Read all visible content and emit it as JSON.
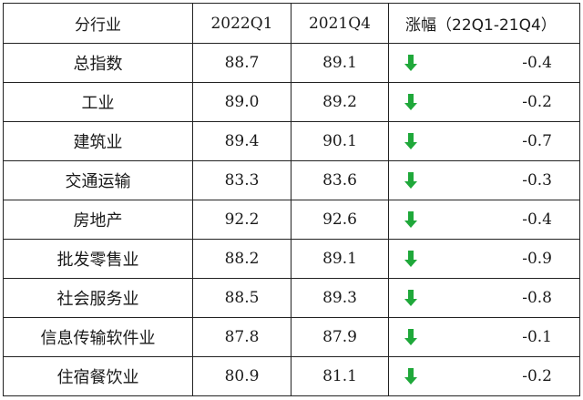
{
  "header": {
    "industry": "分行业",
    "q1": "2022Q1",
    "q4": "2021Q4",
    "change": "涨幅（22Q1-21Q4）"
  },
  "arrow_color": "#1fa83a",
  "arrow_icon": "down-arrow-icon",
  "rows": [
    {
      "industry": "总指数",
      "q1": "88.7",
      "q4": "89.1",
      "change": "-0.4"
    },
    {
      "industry": "工业",
      "q1": "89.0",
      "q4": "89.2",
      "change": "-0.2"
    },
    {
      "industry": "建筑业",
      "q1": "89.4",
      "q4": "90.1",
      "change": "-0.7"
    },
    {
      "industry": "交通运输",
      "q1": "83.3",
      "q4": "83.6",
      "change": "-0.3"
    },
    {
      "industry": "房地产",
      "q1": "92.2",
      "q4": "92.6",
      "change": "-0.4"
    },
    {
      "industry": "批发零售业",
      "q1": "88.2",
      "q4": "89.1",
      "change": "-0.9"
    },
    {
      "industry": "社会服务业",
      "q1": "88.5",
      "q4": "89.3",
      "change": "-0.8"
    },
    {
      "industry": "信息传输软件业",
      "q1": "87.8",
      "q4": "87.9",
      "change": "-0.1"
    },
    {
      "industry": "住宿餐饮业",
      "q1": "80.9",
      "q4": "81.1",
      "change": "-0.2"
    }
  ]
}
